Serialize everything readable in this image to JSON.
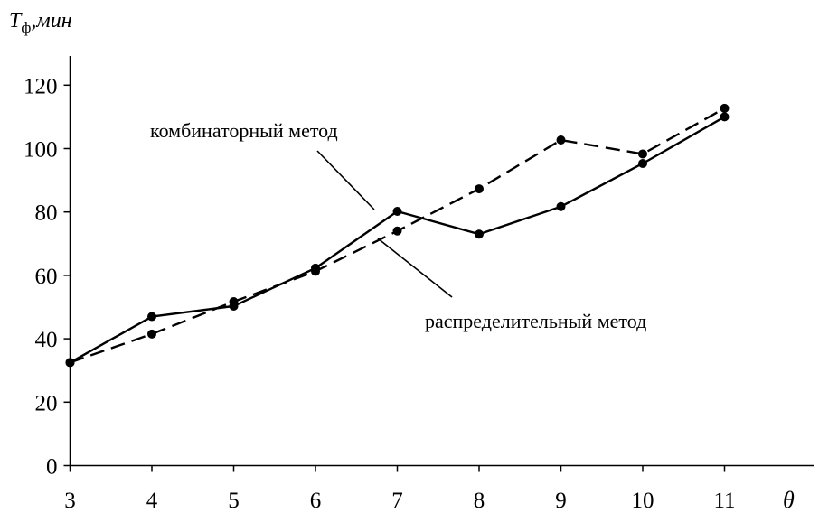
{
  "chart_data": {
    "type": "line",
    "title": "",
    "xlabel": "θ",
    "ylabel": {
      "symbol": "T",
      "subscript": "ф",
      "unit": ",мин"
    },
    "x": [
      3,
      4,
      5,
      6,
      7,
      8,
      9,
      10,
      11
    ],
    "xlim": [
      3,
      12
    ],
    "ylim": [
      0,
      128
    ],
    "y_ticks": [
      0,
      20,
      40,
      60,
      80,
      100,
      120
    ],
    "x_ticks": [
      3,
      4,
      5,
      6,
      7,
      8,
      9,
      10,
      11
    ],
    "grid": false,
    "legend": "none",
    "series": [
      {
        "name": "комбинаторный метод",
        "style": "solid",
        "color": "#000000",
        "values": [
          32.5,
          47,
          50.3,
          62.3,
          80.2,
          73,
          81.7,
          95.3,
          110
        ]
      },
      {
        "name": "распределительный метод",
        "style": "dashed",
        "color": "#000000",
        "values": [
          32.5,
          41.5,
          51.7,
          61.3,
          74,
          87.3,
          102.7,
          98.3,
          112.7
        ]
      }
    ]
  }
}
